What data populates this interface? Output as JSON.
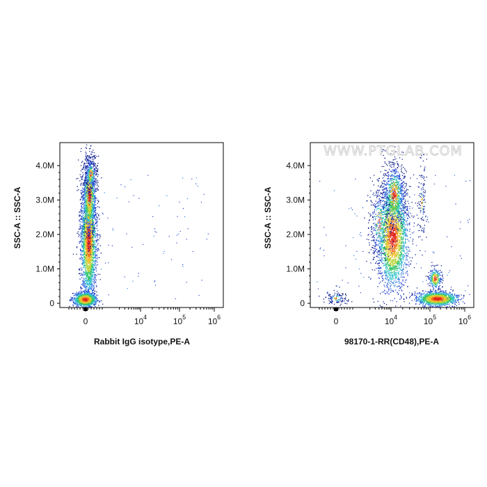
{
  "watermark": "WWW.PTGLAB.COM",
  "colors": {
    "density": [
      "#0b1a8c",
      "#1f3fd0",
      "#2f7de0",
      "#2ec0c8",
      "#36c46a",
      "#b8d43a",
      "#f2c12e",
      "#f07a22",
      "#e3261c"
    ]
  },
  "chart_data": [
    {
      "type": "scatter",
      "plot_style": "density-dot-plot",
      "xlabel": "Rabbit IgG isotype,PE-A",
      "ylabel": "SSC-A :: SSC-A",
      "x_scale": "biexponential",
      "x_ticks": [
        {
          "base": "0",
          "exp": ""
        },
        {
          "base": "10",
          "exp": "4"
        },
        {
          "base": "10",
          "exp": "5"
        },
        {
          "base": "10",
          "exp": "6"
        }
      ],
      "y_ticks": [
        "0",
        "1.0M",
        "2.0M",
        "3.0M",
        "4.0M"
      ],
      "ylim": [
        0,
        4600000
      ],
      "populations": [
        {
          "center_x": 0,
          "center_y": 200000,
          "spread_x": "narrow",
          "spread_y": "narrow",
          "density": "highest"
        },
        {
          "center_x": 0,
          "center_y": 1800000,
          "spread_x": "narrow",
          "spread_y": "wide",
          "density": "high",
          "range_y": [
            400000,
            4300000
          ]
        }
      ]
    },
    {
      "type": "scatter",
      "plot_style": "density-dot-plot",
      "xlabel": "98170-1-RR(CD48),PE-A",
      "ylabel": "SSC-A :: SSC-A",
      "x_scale": "biexponential",
      "x_ticks": [
        {
          "base": "0",
          "exp": ""
        },
        {
          "base": "10",
          "exp": "4"
        },
        {
          "base": "10",
          "exp": "5"
        },
        {
          "base": "10",
          "exp": "6"
        }
      ],
      "y_ticks": [
        "0",
        "1.0M",
        "2.0M",
        "3.0M",
        "4.0M"
      ],
      "ylim": [
        0,
        4600000
      ],
      "populations": [
        {
          "center_x": 200000,
          "center_y": 150000,
          "spread_x": "medium",
          "spread_y": "narrow",
          "density": "highest"
        },
        {
          "center_x": 12000,
          "center_y": 1700000,
          "spread_x": "medium",
          "spread_y": "wide",
          "density": "high",
          "range_y": [
            600000,
            4100000
          ]
        },
        {
          "center_x": 100000,
          "center_y": 700000,
          "spread_x": "narrow",
          "spread_y": "narrow",
          "density": "medium"
        },
        {
          "center_x": 0,
          "center_y": 200000,
          "spread_x": "narrow",
          "spread_y": "narrow",
          "density": "low"
        }
      ]
    }
  ]
}
